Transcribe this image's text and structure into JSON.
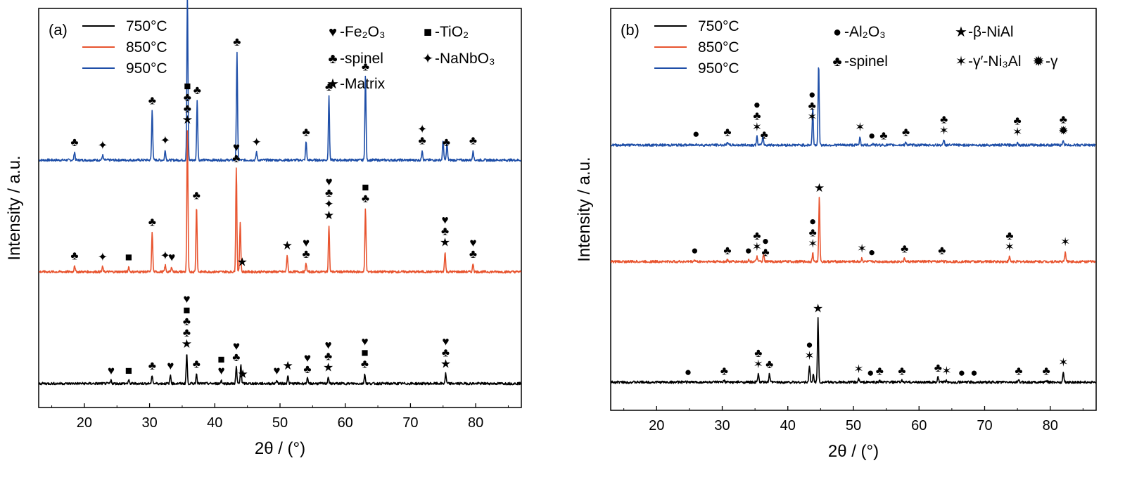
{
  "chart_data": [
    {
      "type": "line",
      "panel_label": "(a)",
      "xlabel": "2θ / (°)",
      "ylabel": "Intensity / a.u.",
      "xlim": [
        13,
        87
      ],
      "xticks": [
        20,
        30,
        40,
        50,
        60,
        70,
        80
      ],
      "legend": [
        {
          "name": "750°C",
          "color": "#000000"
        },
        {
          "name": "850°C",
          "color": "#e8542f"
        },
        {
          "name": "950°C",
          "color": "#1f4fa8"
        }
      ],
      "phase_legend": [
        {
          "symbol": "♥",
          "label": "-Fe₂O₃"
        },
        {
          "symbol": "■",
          "label": "-TiO₂"
        },
        {
          "symbol": "♣",
          "label": "-spinel"
        },
        {
          "symbol": "✦",
          "label": "-NaNbO₃"
        },
        {
          "symbol": "★",
          "label": "-Matrix"
        }
      ],
      "series": [
        {
          "name": "950°C",
          "color": "#1f4fa8",
          "baseline": 0.62,
          "peaks": [
            [
              18.5,
              0.05
            ],
            [
              22.8,
              0.03
            ],
            [
              30.4,
              0.3
            ],
            [
              32.4,
              0.06
            ],
            [
              35.8,
              1.0
            ],
            [
              37.3,
              0.36
            ],
            [
              43.4,
              0.65
            ],
            [
              46.4,
              0.05
            ],
            [
              54.0,
              0.11
            ],
            [
              57.5,
              0.38
            ],
            [
              63.1,
              0.5
            ],
            [
              71.8,
              0.06
            ],
            [
              75.0,
              0.12
            ],
            [
              75.6,
              0.1
            ],
            [
              79.6,
              0.06
            ]
          ],
          "annotations": [
            {
              "x": 18.5,
              "s": [
                "♣"
              ]
            },
            {
              "x": 22.8,
              "s": [
                "✦"
              ]
            },
            {
              "x": 30.4,
              "s": [
                "♣"
              ]
            },
            {
              "x": 32.4,
              "s": [
                "✦"
              ]
            },
            {
              "x": 35.8,
              "s": [
                "♣"
              ]
            },
            {
              "x": 37.3,
              "s": [
                "♣"
              ]
            },
            {
              "x": 43.4,
              "s": [
                "♣"
              ]
            },
            {
              "x": 46.4,
              "s": [
                "✦"
              ]
            },
            {
              "x": 54.0,
              "s": [
                "♣"
              ]
            },
            {
              "x": 57.5,
              "s": [
                "♣"
              ]
            },
            {
              "x": 63.1,
              "s": [
                "♣"
              ]
            },
            {
              "x": 71.8,
              "s": [
                "♣",
                "✦"
              ]
            },
            {
              "x": 75.5,
              "s": [
                "♣"
              ]
            },
            {
              "x": 79.6,
              "s": [
                "♣"
              ]
            }
          ]
        },
        {
          "name": "850°C",
          "color": "#e8542f",
          "baseline": 0.34,
          "peaks": [
            [
              18.5,
              0.04
            ],
            [
              22.8,
              0.03
            ],
            [
              26.8,
              0.03
            ],
            [
              30.4,
              0.24
            ],
            [
              32.4,
              0.04
            ],
            [
              33.4,
              0.03
            ],
            [
              35.8,
              0.85
            ],
            [
              37.2,
              0.4
            ],
            [
              43.3,
              0.62
            ],
            [
              43.9,
              0.3
            ],
            [
              51.1,
              0.1
            ],
            [
              54.0,
              0.05
            ],
            [
              57.5,
              0.28
            ],
            [
              63.1,
              0.38
            ],
            [
              75.3,
              0.12
            ],
            [
              79.6,
              0.05
            ]
          ],
          "annotations": [
            {
              "x": 18.5,
              "s": [
                "♣"
              ]
            },
            {
              "x": 22.8,
              "s": [
                "✦"
              ]
            },
            {
              "x": 26.8,
              "s": [
                "■"
              ]
            },
            {
              "x": 30.4,
              "s": [
                "♣"
              ]
            },
            {
              "x": 32.4,
              "s": [
                "✦"
              ]
            },
            {
              "x": 33.4,
              "s": [
                "♥"
              ]
            },
            {
              "x": 35.8,
              "s": [
                "★",
                "♣",
                "♣",
                "■"
              ]
            },
            {
              "x": 37.2,
              "s": [
                "♣"
              ]
            },
            {
              "x": 43.3,
              "s": [
                "♣",
                "♥"
              ]
            },
            {
              "x": 44.2,
              "s": [
                "★"
              ]
            },
            {
              "x": 51.1,
              "s": [
                "★"
              ]
            },
            {
              "x": 54.0,
              "s": [
                "♣",
                "♥"
              ]
            },
            {
              "x": 57.5,
              "s": [
                "★",
                "✦",
                "♣",
                "♥"
              ]
            },
            {
              "x": 63.1,
              "s": [
                "♣",
                "■"
              ]
            },
            {
              "x": 75.3,
              "s": [
                "★",
                "♣",
                "♥"
              ]
            },
            {
              "x": 79.6,
              "s": [
                "♣",
                "♥"
              ]
            }
          ]
        },
        {
          "name": "750°C",
          "color": "#000000",
          "baseline": 0.06,
          "peaks": [
            [
              24.1,
              0.02
            ],
            [
              26.8,
              0.02
            ],
            [
              30.4,
              0.05
            ],
            [
              33.2,
              0.05
            ],
            [
              35.7,
              0.18
            ],
            [
              37.2,
              0.06
            ],
            [
              41.0,
              0.02
            ],
            [
              43.3,
              0.1
            ],
            [
              44.0,
              0.12
            ],
            [
              49.5,
              0.02
            ],
            [
              51.2,
              0.05
            ],
            [
              54.2,
              0.03
            ],
            [
              57.4,
              0.04
            ],
            [
              63.0,
              0.06
            ],
            [
              75.4,
              0.06
            ]
          ],
          "annotations": [
            {
              "x": 24.1,
              "s": [
                "♥"
              ]
            },
            {
              "x": 26.8,
              "s": [
                "■"
              ]
            },
            {
              "x": 30.4,
              "s": [
                "♣"
              ]
            },
            {
              "x": 33.2,
              "s": [
                "♥"
              ]
            },
            {
              "x": 35.7,
              "s": [
                "★",
                "♣",
                "♣",
                "■",
                "♥"
              ]
            },
            {
              "x": 37.2,
              "s": [
                "♣"
              ]
            },
            {
              "x": 41.0,
              "s": [
                "♥",
                "■"
              ]
            },
            {
              "x": 43.3,
              "s": [
                "♣",
                "♥"
              ]
            },
            {
              "x": 44.3,
              "s": [
                "★"
              ]
            },
            {
              "x": 49.5,
              "s": [
                "♥"
              ]
            },
            {
              "x": 51.2,
              "s": [
                "★"
              ]
            },
            {
              "x": 54.2,
              "s": [
                "♣",
                "♥"
              ]
            },
            {
              "x": 57.4,
              "s": [
                "★",
                "♣",
                "♥"
              ]
            },
            {
              "x": 63.0,
              "s": [
                "♣",
                "■",
                "♥"
              ]
            },
            {
              "x": 75.4,
              "s": [
                "★",
                "♣",
                "♥"
              ]
            }
          ]
        }
      ]
    },
    {
      "type": "line",
      "panel_label": "(b)",
      "xlabel": "2θ / (°)",
      "ylabel": "Intensity / a.u.",
      "xlim": [
        13,
        87
      ],
      "xticks": [
        20,
        30,
        40,
        50,
        60,
        70,
        80
      ],
      "legend": [
        {
          "name": "750°C",
          "color": "#000000"
        },
        {
          "name": "850°C",
          "color": "#e8542f"
        },
        {
          "name": "950°C",
          "color": "#1f4fa8"
        }
      ],
      "phase_legend": [
        {
          "symbol": "●",
          "label": "-Al₂O₃"
        },
        {
          "symbol": "★",
          "label": "-β-NiAl"
        },
        {
          "symbol": "♣",
          "label": "-spinel"
        },
        {
          "symbol": "✶",
          "label": "-γ′-Ni₃Al"
        },
        {
          "symbol": "✹",
          "label": "-γ"
        }
      ],
      "series": [
        {
          "name": "950°C",
          "color": "#1f4fa8",
          "baseline": 0.66,
          "peaks": [
            [
              26.0,
              0.01
            ],
            [
              30.8,
              0.02
            ],
            [
              35.3,
              0.05
            ],
            [
              36.2,
              0.06
            ],
            [
              43.8,
              0.22
            ],
            [
              44.7,
              0.48
            ],
            [
              51.0,
              0.05
            ],
            [
              53.0,
              0.01
            ],
            [
              58.0,
              0.02
            ],
            [
              63.8,
              0.03
            ],
            [
              75.0,
              0.02
            ],
            [
              82.0,
              0.03
            ]
          ],
          "annotations": [
            {
              "x": 26.0,
              "s": [
                "●"
              ]
            },
            {
              "x": 30.8,
              "s": [
                "♣"
              ]
            },
            {
              "x": 35.3,
              "s": [
                "✶",
                "♣",
                "●"
              ]
            },
            {
              "x": 36.4,
              "s": [
                "♣"
              ]
            },
            {
              "x": 43.7,
              "s": [
                "✶",
                "♣",
                "●"
              ]
            },
            {
              "x": 51.0,
              "s": [
                "✶"
              ]
            },
            {
              "x": 52.8,
              "s": [
                "●"
              ]
            },
            {
              "x": 54.6,
              "s": [
                "♣"
              ]
            },
            {
              "x": 58.0,
              "s": [
                "♣"
              ]
            },
            {
              "x": 63.8,
              "s": [
                "✶",
                "♣"
              ]
            },
            {
              "x": 75.0,
              "s": [
                "✶",
                "♣"
              ]
            },
            {
              "x": 82.0,
              "s": [
                "✹",
                "♣"
              ]
            }
          ]
        },
        {
          "name": "850°C",
          "color": "#e8542f",
          "baseline": 0.37,
          "peaks": [
            [
              25.8,
              0.01
            ],
            [
              30.8,
              0.01
            ],
            [
              34.0,
              0.01
            ],
            [
              35.3,
              0.03
            ],
            [
              36.3,
              0.04
            ],
            [
              43.8,
              0.05
            ],
            [
              44.8,
              0.38
            ],
            [
              51.3,
              0.02
            ],
            [
              57.8,
              0.02
            ],
            [
              63.5,
              0.01
            ],
            [
              73.8,
              0.03
            ],
            [
              82.3,
              0.06
            ]
          ],
          "annotations": [
            {
              "x": 25.8,
              "s": [
                "●"
              ]
            },
            {
              "x": 30.8,
              "s": [
                "♣"
              ]
            },
            {
              "x": 34.0,
              "s": [
                "●"
              ]
            },
            {
              "x": 35.3,
              "s": [
                "✶",
                "♣"
              ]
            },
            {
              "x": 36.6,
              "s": [
                "♣",
                "●"
              ]
            },
            {
              "x": 43.8,
              "s": [
                "✶",
                "♣",
                "●"
              ]
            },
            {
              "x": 44.8,
              "s": [
                "★"
              ]
            },
            {
              "x": 51.3,
              "s": [
                "✶"
              ]
            },
            {
              "x": 52.8,
              "s": [
                "●"
              ]
            },
            {
              "x": 57.8,
              "s": [
                "♣"
              ]
            },
            {
              "x": 63.5,
              "s": [
                "♣"
              ]
            },
            {
              "x": 73.8,
              "s": [
                "✶",
                "♣"
              ]
            },
            {
              "x": 82.3,
              "s": [
                "✶"
              ]
            }
          ]
        },
        {
          "name": "750°C",
          "color": "#000000",
          "baseline": 0.07,
          "peaks": [
            [
              24.8,
              0.005
            ],
            [
              30.3,
              0.01
            ],
            [
              35.5,
              0.05
            ],
            [
              37.2,
              0.05
            ],
            [
              43.3,
              0.1
            ],
            [
              43.9,
              0.05
            ],
            [
              44.6,
              0.38
            ],
            [
              50.8,
              0.02
            ],
            [
              54.0,
              0.01
            ],
            [
              57.4,
              0.01
            ],
            [
              62.9,
              0.03
            ],
            [
              64.2,
              0.01
            ],
            [
              75.2,
              0.01
            ],
            [
              79.4,
              0.01
            ],
            [
              82.0,
              0.06
            ]
          ],
          "annotations": [
            {
              "x": 24.8,
              "s": [
                "●"
              ]
            },
            {
              "x": 30.3,
              "s": [
                "♣"
              ]
            },
            {
              "x": 35.5,
              "s": [
                "✶",
                "♣"
              ]
            },
            {
              "x": 37.2,
              "s": [
                "♣"
              ]
            },
            {
              "x": 43.3,
              "s": [
                "✶",
                "●"
              ]
            },
            {
              "x": 44.6,
              "s": [
                "★"
              ]
            },
            {
              "x": 50.8,
              "s": [
                "✶"
              ]
            },
            {
              "x": 52.6,
              "s": [
                "●"
              ]
            },
            {
              "x": 54.0,
              "s": [
                "♣"
              ]
            },
            {
              "x": 57.4,
              "s": [
                "♣"
              ]
            },
            {
              "x": 62.9,
              "s": [
                "♣"
              ]
            },
            {
              "x": 64.2,
              "s": [
                "✶"
              ]
            },
            {
              "x": 66.5,
              "s": [
                "●"
              ]
            },
            {
              "x": 68.4,
              "s": [
                "●"
              ]
            },
            {
              "x": 75.2,
              "s": [
                "♣"
              ]
            },
            {
              "x": 79.4,
              "s": [
                "♣"
              ]
            },
            {
              "x": 82.0,
              "s": [
                "✶"
              ]
            }
          ]
        }
      ]
    }
  ]
}
